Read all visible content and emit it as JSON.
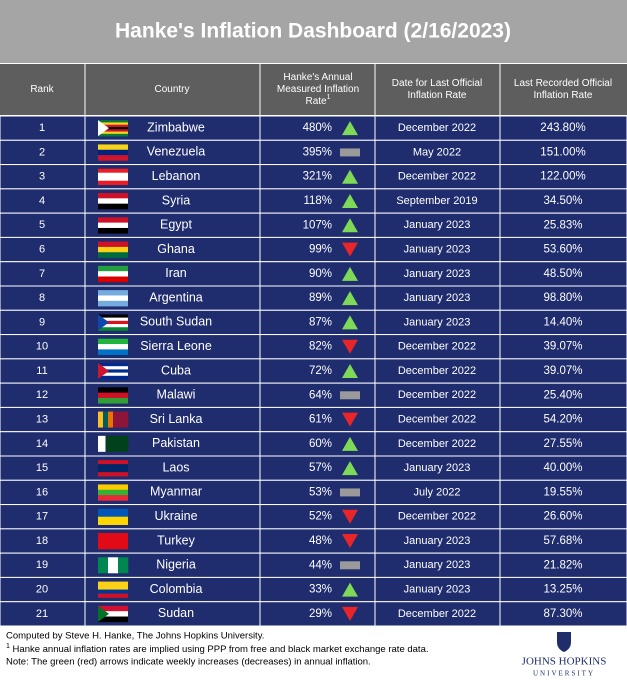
{
  "title": "Hanke's Inflation Dashboard (2/16/2023)",
  "columns": [
    {
      "lines": [
        "Rank"
      ]
    },
    {
      "lines": [
        "Country"
      ]
    },
    {
      "lines": [
        "Hanke's Annual",
        "Measured Inflation",
        "Rate"
      ],
      "note": "1"
    },
    {
      "lines": [
        "Date for Last Official",
        "Inflation Rate"
      ]
    },
    {
      "lines": [
        "Last Recorded Official",
        "Inflation Rate"
      ]
    }
  ],
  "table": {
    "rows": [
      [
        "1",
        "Zimbabwe",
        "480%",
        "up",
        "December 2022",
        "243.80%"
      ],
      [
        "2",
        "Venezuela",
        "395%",
        "flat",
        "May 2022",
        "151.00%"
      ],
      [
        "3",
        "Lebanon",
        "321%",
        "up",
        "December 2022",
        "122.00%"
      ],
      [
        "4",
        "Syria",
        "118%",
        "up",
        "September 2019",
        "34.50%"
      ],
      [
        "5",
        "Egypt",
        "107%",
        "up",
        "January 2023",
        "25.83%"
      ],
      [
        "6",
        "Ghana",
        "99%",
        "down",
        "January 2023",
        "53.60%"
      ],
      [
        "7",
        "Iran",
        "90%",
        "up",
        "January 2023",
        "48.50%"
      ],
      [
        "8",
        "Argentina",
        "89%",
        "up",
        "January 2023",
        "98.80%"
      ],
      [
        "9",
        "South Sudan",
        "87%",
        "up",
        "January 2023",
        "14.40%"
      ],
      [
        "10",
        "Sierra Leone",
        "82%",
        "down",
        "December 2022",
        "39.07%"
      ],
      [
        "11",
        "Cuba",
        "72%",
        "up",
        "December 2022",
        "39.07%"
      ],
      [
        "12",
        "Malawi",
        "64%",
        "flat",
        "December 2022",
        "25.40%"
      ],
      [
        "13",
        "Sri Lanka",
        "61%",
        "down",
        "December 2022",
        "54.20%"
      ],
      [
        "14",
        "Pakistan",
        "60%",
        "up",
        "December 2022",
        "27.55%"
      ],
      [
        "15",
        "Laos",
        "57%",
        "up",
        "January 2023",
        "40.00%"
      ],
      [
        "16",
        "Myanmar",
        "53%",
        "flat",
        "July 2022",
        "19.55%"
      ],
      [
        "17",
        "Ukraine",
        "52%",
        "down",
        "December 2022",
        "26.60%"
      ],
      [
        "18",
        "Turkey",
        "48%",
        "down",
        "January 2023",
        "57.68%"
      ],
      [
        "19",
        "Nigeria",
        "44%",
        "flat",
        "January 2023",
        "21.82%"
      ],
      [
        "20",
        "Colombia",
        "33%",
        "up",
        "January 2023",
        "13.25%"
      ],
      [
        "21",
        "Sudan",
        "29%",
        "down",
        "December 2022",
        "87.30%"
      ]
    ]
  },
  "footer": {
    "credit": "Computed by Steve H. Hanke, The Johns Hopkins University.",
    "note_mark": "1",
    "note": " Hanke annual inflation rates are implied using PPP from free and black market exchange rate data.",
    "arrows": "Note: The green (red) arrows indicate weekly increases (decreases) in annual inflation."
  },
  "logo": {
    "name": "JOHNS HOPKINS",
    "sub": "UNIVERSITY"
  }
}
